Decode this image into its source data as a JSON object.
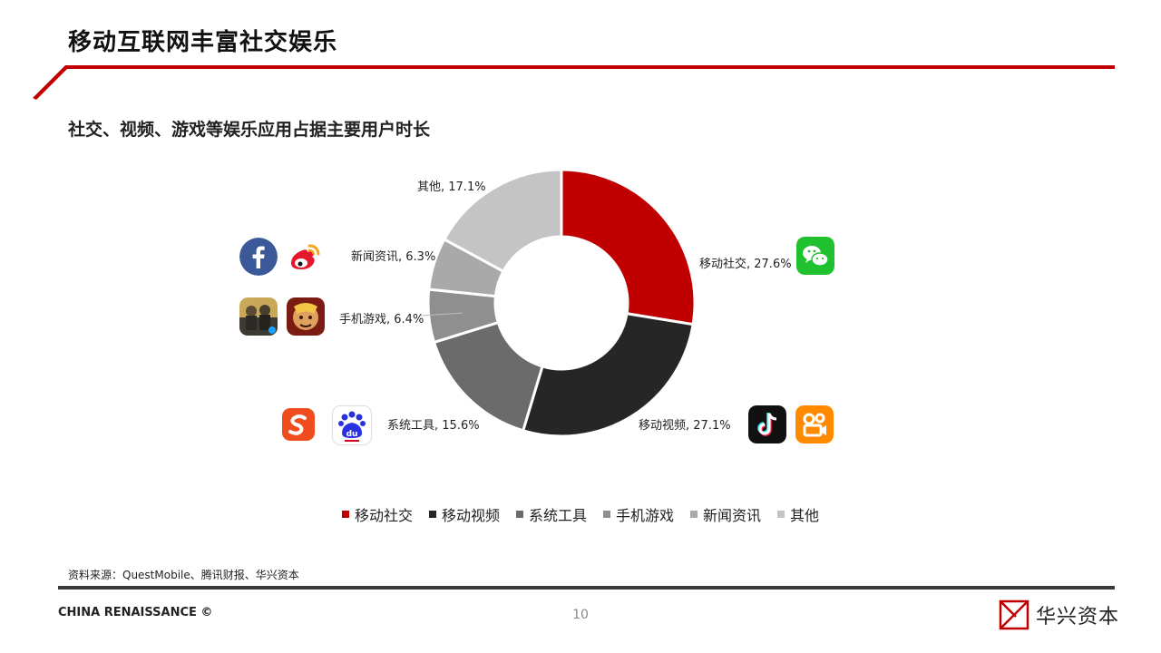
{
  "page": {
    "title": "移动互联网丰富社交娱乐",
    "subtitle": "社交、视频、游戏等娱乐应用占据主要用户时长",
    "source": "资料来源：QuestMobile、腾讯财报、华兴资本",
    "footer_brand": "CHINA RENAISSANCE ©",
    "page_number": "10",
    "logo_text": "华兴资本",
    "accent_color": "#c00000"
  },
  "chart_data": {
    "type": "pie",
    "title": "",
    "donut": true,
    "categories": [
      "移动社交",
      "移动视频",
      "系统工具",
      "手机游戏",
      "新闻资讯",
      "其他"
    ],
    "values": [
      27.6,
      27.1,
      15.6,
      6.4,
      6.3,
      17.1
    ],
    "unit": "%",
    "data_labels": [
      "移动社交, 27.6%",
      "移动视频, 27.1%",
      "系统工具, 15.6%",
      "手机游戏, 6.4%",
      "新闻资讯, 6.3%",
      "其他, 17.1%"
    ],
    "colors": [
      "#c00000",
      "#262626",
      "#6b6b6b",
      "#8f8f8f",
      "#a9a9a9",
      "#c4c4c4"
    ],
    "legend": {
      "position": "bottom",
      "entries": [
        "移动社交",
        "移动视频",
        "系统工具",
        "手机游戏",
        "新闻资讯",
        "其他"
      ]
    }
  },
  "icons": {
    "social": [
      "wechat-icon"
    ],
    "video": [
      "douyin-icon",
      "kuaishou-icon"
    ],
    "tools": [
      "sogou-icon",
      "baidu-icon"
    ],
    "games": [
      "pubg-icon",
      "honor-of-kings-icon"
    ],
    "news": [
      "facebook-icon",
      "weibo-icon"
    ]
  }
}
